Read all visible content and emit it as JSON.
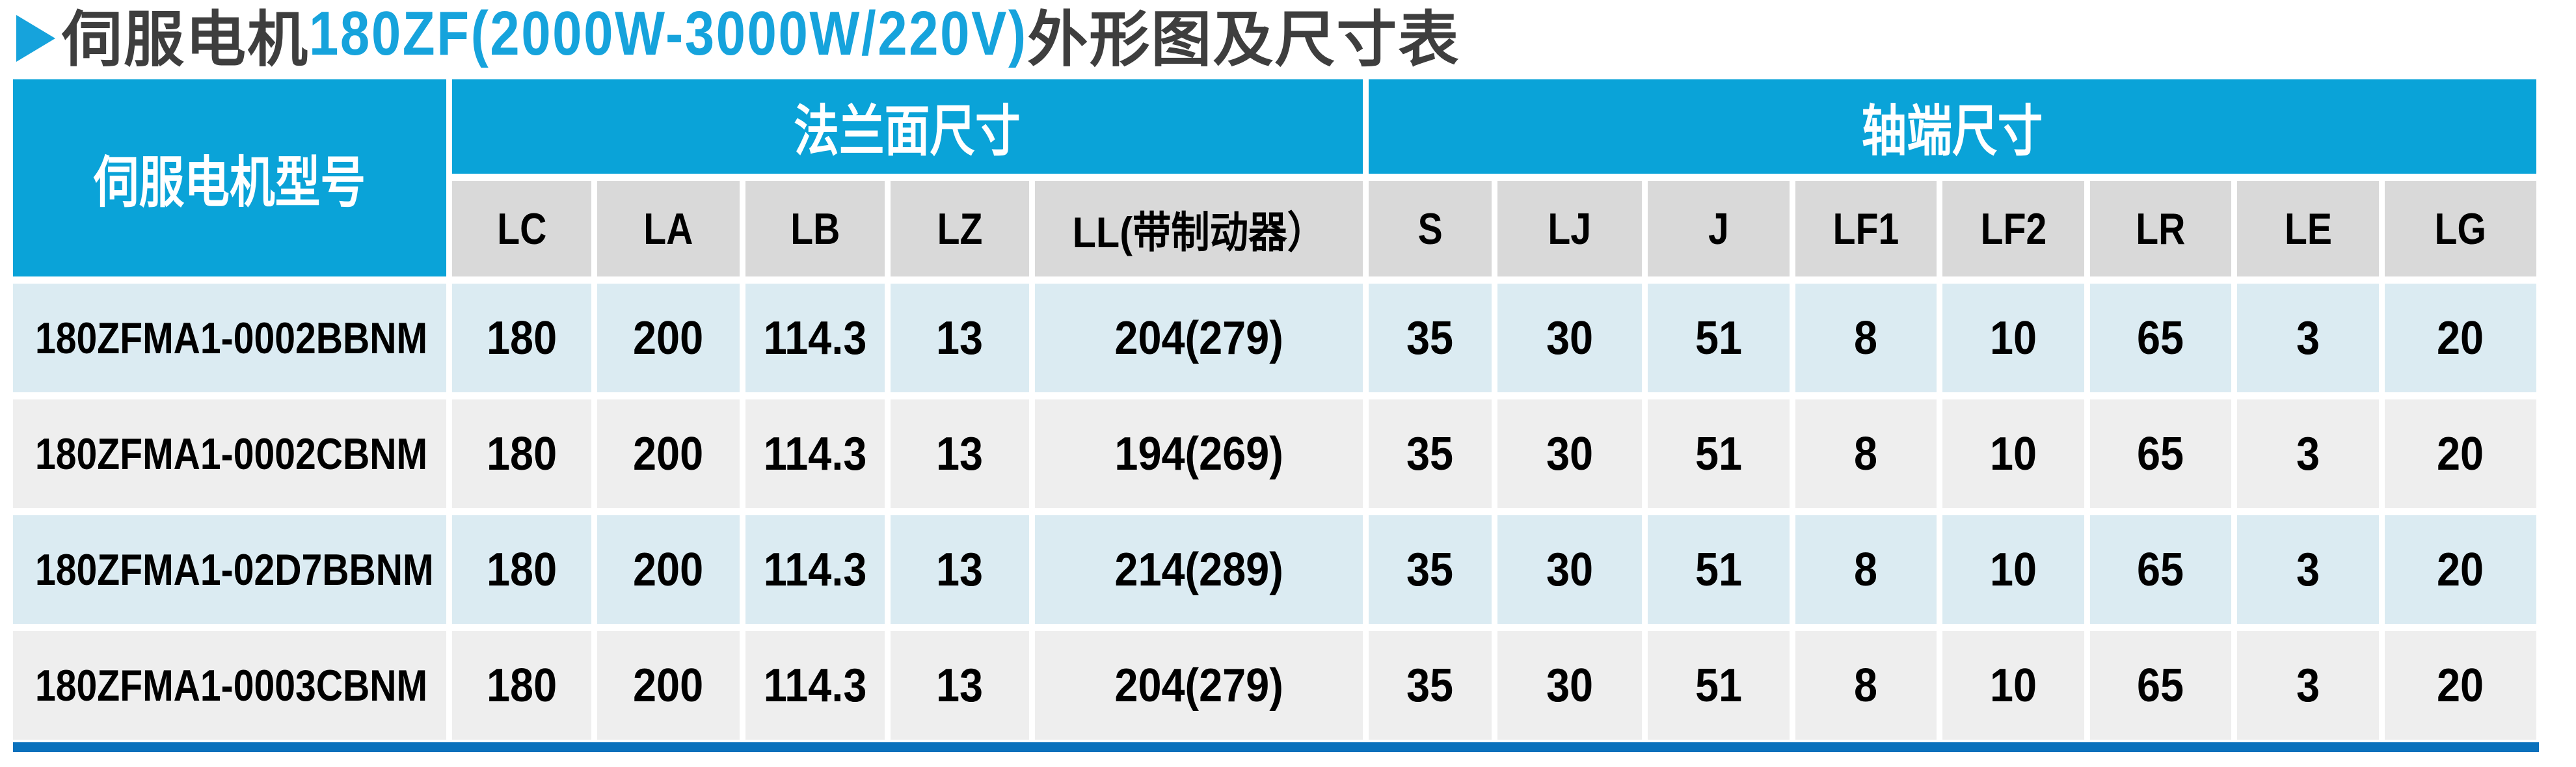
{
  "title": {
    "prefix": "伺服电机",
    "highlight": "180ZF(2000W-3000W/220V)",
    "suffix": "外形图及尺寸表"
  },
  "table": {
    "model_header": "伺服电机型号",
    "groups": [
      {
        "label": "法兰面尺寸",
        "span": 5
      },
      {
        "label": "轴端尺寸",
        "span": 8
      }
    ],
    "columns": [
      "LC",
      "LA",
      "LB",
      "LZ",
      "LL(带制动器）",
      "S",
      "LJ",
      "J",
      "LF1",
      "LF2",
      "LR",
      "LE",
      "LG"
    ],
    "rows": [
      {
        "model": "180ZFMA1-0002BBNM",
        "values": [
          "180",
          "200",
          "114.3",
          "13",
          "204(279)",
          "35",
          "30",
          "51",
          "8",
          "10",
          "65",
          "3",
          "20"
        ]
      },
      {
        "model": "180ZFMA1-0002CBNM",
        "values": [
          "180",
          "200",
          "114.3",
          "13",
          "194(269)",
          "35",
          "30",
          "51",
          "8",
          "10",
          "65",
          "3",
          "20"
        ]
      },
      {
        "model": "180ZFMA1-02D7BBNM",
        "values": [
          "180",
          "200",
          "114.3",
          "13",
          "214(289)",
          "35",
          "30",
          "51",
          "8",
          "10",
          "65",
          "3",
          "20"
        ]
      },
      {
        "model": "180ZFMA1-0003CBNM",
        "values": [
          "180",
          "200",
          "114.3",
          "13",
          "204(279)",
          "35",
          "30",
          "51",
          "8",
          "10",
          "65",
          "3",
          "20"
        ]
      }
    ]
  },
  "colors": {
    "header_blue": "#0AA3D8",
    "row_blue": "#DBEBF2",
    "row_gray": "#EEEEEE",
    "subheader_gray": "#D9D9D9",
    "bottom_bar": "#0A71BC",
    "title_dark": "#3E3E3E",
    "title_blue": "#16A3DC"
  }
}
